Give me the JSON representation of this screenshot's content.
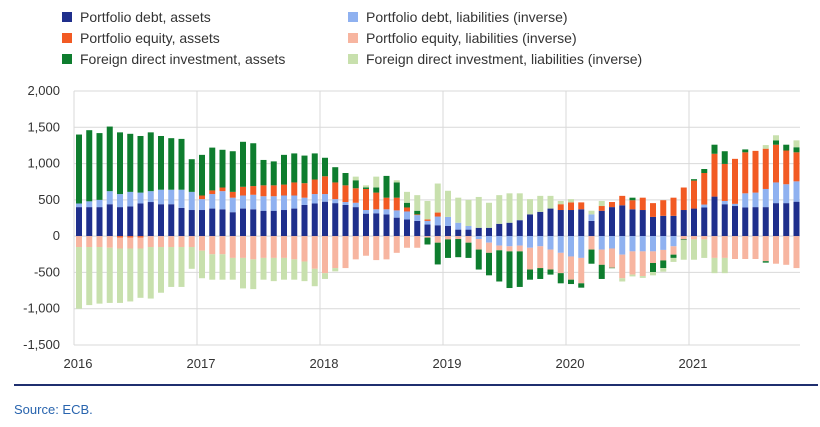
{
  "chart_data": {
    "type": "bar",
    "stacked": true,
    "x_start": "2016-01",
    "x_frequency": "monthly",
    "x_ticks": [
      "2016",
      "2017",
      "2018",
      "2019",
      "2020",
      "2021"
    ],
    "y_ticks": [
      "2,000",
      "1,500",
      "1,000",
      "500",
      "0",
      "-500",
      "-1,000",
      "-1,500"
    ],
    "ylim": [
      -1500,
      2000
    ],
    "grid": true,
    "legend_placement": "top",
    "series": [
      {
        "name": "Portfolio debt, assets",
        "color": "#1f2f8c",
        "values": [
          400,
          400,
          400,
          440,
          400,
          410,
          450,
          470,
          440,
          440,
          390,
          360,
          360,
          380,
          370,
          330,
          380,
          370,
          350,
          350,
          360,
          380,
          430,
          450,
          475,
          455,
          430,
          400,
          310,
          315,
          300,
          255,
          230,
          210,
          160,
          150,
          140,
          90,
          90,
          115,
          115,
          170,
          185,
          220,
          300,
          335,
          380,
          360,
          360,
          370,
          210,
          350,
          400,
          425,
          370,
          360,
          265,
          280,
          280,
          360,
          380,
          395,
          545,
          440,
          415,
          395,
          400,
          400,
          455,
          455,
          475
        ]
      },
      {
        "name": "Portfolio debt, liabilities (inverse)",
        "color": "#8fb1f0",
        "values": [
          50,
          80,
          100,
          180,
          180,
          200,
          150,
          150,
          200,
          200,
          250,
          250,
          150,
          200,
          250,
          200,
          180,
          200,
          200,
          200,
          200,
          180,
          100,
          130,
          105,
          55,
          40,
          60,
          50,
          55,
          70,
          100,
          110,
          80,
          50,
          120,
          125,
          95,
          50,
          -40,
          -90,
          -130,
          -140,
          -130,
          -160,
          -140,
          -185,
          -230,
          -280,
          -300,
          90,
          -185,
          -170,
          -255,
          -210,
          -210,
          -210,
          -190,
          -140,
          0,
          0,
          40,
          0,
          45,
          30,
          195,
          200,
          250,
          285,
          260,
          280
        ]
      },
      {
        "name": "Portfolio equity, assets",
        "color": "#f25a23",
        "values": [
          0,
          0,
          0,
          0,
          -20,
          -20,
          -20,
          0,
          0,
          0,
          0,
          0,
          50,
          50,
          50,
          80,
          120,
          120,
          150,
          150,
          150,
          180,
          200,
          200,
          245,
          230,
          230,
          200,
          290,
          230,
          160,
          175,
          55,
          10,
          20,
          55,
          0,
          0,
          0,
          0,
          0,
          0,
          0,
          0,
          0,
          0,
          0,
          80,
          105,
          95,
          0,
          65,
          70,
          130,
          125,
          170,
          190,
          215,
          250,
          310,
          385,
          435,
          590,
          510,
          620,
          565,
          575,
          555,
          520,
          465,
          400
        ]
      },
      {
        "name": "Portfolio equity, liabilities (inverse)",
        "color": "#f7b5a0",
        "values": [
          -150,
          -150,
          -150,
          -160,
          -150,
          -150,
          -150,
          -150,
          -150,
          -150,
          -150,
          -150,
          -200,
          -250,
          -250,
          -300,
          -300,
          -320,
          -300,
          -300,
          -300,
          -320,
          -350,
          -450,
          -510,
          -440,
          -440,
          -320,
          -270,
          -330,
          -320,
          -230,
          -160,
          -160,
          -20,
          -90,
          -45,
          -40,
          -90,
          -145,
          -140,
          -65,
          -70,
          -80,
          -300,
          -300,
          -275,
          -280,
          -320,
          -350,
          -185,
          -210,
          -265,
          -325,
          -320,
          -340,
          -160,
          -145,
          -115,
          -45,
          -45,
          -45,
          -300,
          -300,
          -315,
          -315,
          -315,
          -345,
          -380,
          -395,
          -440
        ]
      },
      {
        "name": "Foreign direct investment, assets",
        "color": "#0e7d2e",
        "values": [
          950,
          980,
          920,
          890,
          850,
          800,
          780,
          810,
          740,
          710,
          700,
          450,
          560,
          590,
          520,
          560,
          620,
          590,
          350,
          330,
          410,
          400,
          380,
          360,
          255,
          210,
          170,
          110,
          20,
          70,
          300,
          210,
          65,
          50,
          -95,
          -300,
          -255,
          -250,
          -210,
          -275,
          -310,
          -430,
          -505,
          -490,
          -140,
          -150,
          -70,
          -140,
          -60,
          -60,
          -195,
          -195,
          -5,
          0,
          35,
          0,
          -125,
          -105,
          -45,
          -10,
          20,
          55,
          125,
          175,
          0,
          40,
          0,
          -20,
          60,
          80,
          70
        ]
      },
      {
        "name": "Foreign direct investment, liabilities (inverse)",
        "color": "#c8e0ad",
        "values": [
          -850,
          -800,
          -780,
          -760,
          -750,
          -730,
          -680,
          -710,
          -630,
          -550,
          -550,
          -300,
          -380,
          -350,
          -350,
          -300,
          -420,
          -410,
          -300,
          -320,
          -300,
          -280,
          -270,
          -240,
          -80,
          -45,
          0,
          50,
          30,
          150,
          0,
          30,
          150,
          215,
          255,
          400,
          360,
          345,
          360,
          425,
          345,
          395,
          405,
          370,
          210,
          220,
          175,
          45,
          45,
          0,
          50,
          70,
          0,
          -45,
          -25,
          -25,
          -45,
          -50,
          -55,
          -270,
          -280,
          -255,
          -210,
          -210,
          0,
          0,
          0,
          50,
          70,
          0,
          95
        ]
      }
    ]
  },
  "footer": {
    "source": "Source: ECB."
  }
}
